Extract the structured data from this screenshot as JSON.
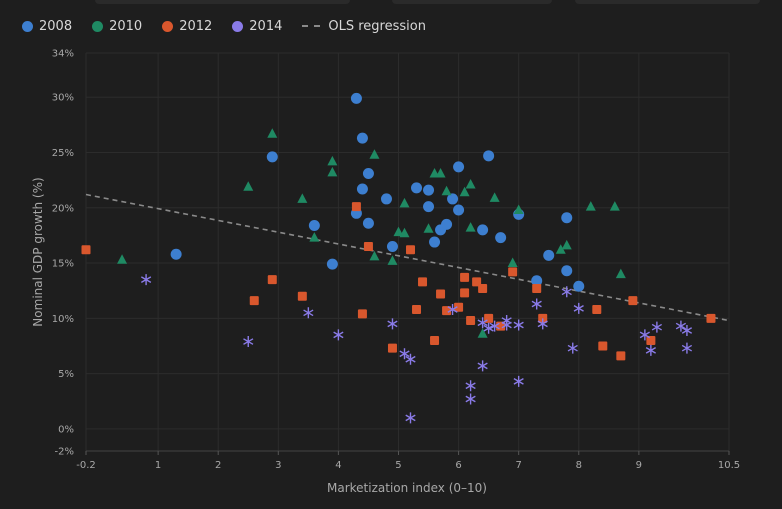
{
  "chart_data": {
    "type": "scatter",
    "xlabel": "Marketization index (0–10)",
    "ylabel": "Nominal GDP growth (%)",
    "xlim": [
      -0.2,
      10.5
    ],
    "ylim": [
      -2,
      34
    ],
    "x_ticks": [
      "-0.2",
      "1",
      "2",
      "3",
      "4",
      "5",
      "6",
      "7",
      "8",
      "9",
      "10.5"
    ],
    "x_tick_values": [
      -0.2,
      1,
      2,
      3,
      4,
      5,
      6,
      7,
      8,
      9,
      10.5
    ],
    "y_ticks": [
      "-2%",
      "0%",
      "5%",
      "10%",
      "15%",
      "20%",
      "25%",
      "30%",
      "34%"
    ],
    "y_tick_values": [
      -2,
      0,
      5,
      10,
      15,
      20,
      25,
      30,
      34
    ],
    "grid": true,
    "legend_position": "top-left",
    "series": [
      {
        "name": "2008",
        "marker": "circle",
        "color": "#3d7fd0",
        "points": [
          [
            1.3,
            15.8
          ],
          [
            2.9,
            24.6
          ],
          [
            3.6,
            18.4
          ],
          [
            3.9,
            14.9
          ],
          [
            4.3,
            29.9
          ],
          [
            4.4,
            26.3
          ],
          [
            4.4,
            21.7
          ],
          [
            4.3,
            19.5
          ],
          [
            4.5,
            23.1
          ],
          [
            4.5,
            18.6
          ],
          [
            4.8,
            20.8
          ],
          [
            4.9,
            16.5
          ],
          [
            5.3,
            21.8
          ],
          [
            5.5,
            21.6
          ],
          [
            5.5,
            20.1
          ],
          [
            5.6,
            16.9
          ],
          [
            5.7,
            18.0
          ],
          [
            5.8,
            18.5
          ],
          [
            5.9,
            20.8
          ],
          [
            6.0,
            23.7
          ],
          [
            6.0,
            19.8
          ],
          [
            6.4,
            18.0
          ],
          [
            6.5,
            24.7
          ],
          [
            6.7,
            17.3
          ],
          [
            7.0,
            19.4
          ],
          [
            7.3,
            13.4
          ],
          [
            7.5,
            15.7
          ],
          [
            7.8,
            19.1
          ],
          [
            7.8,
            14.3
          ],
          [
            8.0,
            12.9
          ]
        ]
      },
      {
        "name": "2010",
        "marker": "triangle",
        "color": "#1f8a63",
        "points": [
          [
            0.4,
            15.3
          ],
          [
            2.5,
            21.9
          ],
          [
            2.9,
            26.7
          ],
          [
            3.4,
            20.8
          ],
          [
            3.6,
            17.3
          ],
          [
            3.9,
            24.2
          ],
          [
            3.9,
            23.2
          ],
          [
            4.6,
            24.8
          ],
          [
            4.6,
            15.6
          ],
          [
            4.9,
            15.2
          ],
          [
            5.0,
            17.8
          ],
          [
            5.1,
            17.7
          ],
          [
            5.1,
            20.4
          ],
          [
            5.5,
            18.1
          ],
          [
            5.6,
            23.1
          ],
          [
            5.7,
            23.1
          ],
          [
            5.8,
            21.5
          ],
          [
            6.1,
            21.4
          ],
          [
            6.2,
            22.1
          ],
          [
            6.2,
            18.2
          ],
          [
            6.4,
            8.6
          ],
          [
            6.6,
            20.9
          ],
          [
            6.9,
            15.0
          ],
          [
            7.0,
            19.8
          ],
          [
            7.7,
            16.2
          ],
          [
            7.8,
            16.6
          ],
          [
            8.2,
            20.1
          ],
          [
            8.6,
            20.1
          ],
          [
            8.7,
            14.0
          ]
        ]
      },
      {
        "name": "2012",
        "marker": "square",
        "color": "#d9572d",
        "points": [
          [
            -0.2,
            16.2
          ],
          [
            2.6,
            11.6
          ],
          [
            2.9,
            13.5
          ],
          [
            3.4,
            12.0
          ],
          [
            4.3,
            20.1
          ],
          [
            4.4,
            10.4
          ],
          [
            4.5,
            16.5
          ],
          [
            4.9,
            7.3
          ],
          [
            5.2,
            16.2
          ],
          [
            5.3,
            10.8
          ],
          [
            5.4,
            13.3
          ],
          [
            5.6,
            8.0
          ],
          [
            5.7,
            12.2
          ],
          [
            5.8,
            10.7
          ],
          [
            6.0,
            11.0
          ],
          [
            6.1,
            13.7
          ],
          [
            6.1,
            12.3
          ],
          [
            6.2,
            9.8
          ],
          [
            6.3,
            13.3
          ],
          [
            6.4,
            12.7
          ],
          [
            6.5,
            10.0
          ],
          [
            6.7,
            9.3
          ],
          [
            6.9,
            14.2
          ],
          [
            7.3,
            12.7
          ],
          [
            7.4,
            10.0
          ],
          [
            8.3,
            10.8
          ],
          [
            8.4,
            7.5
          ],
          [
            8.7,
            6.6
          ],
          [
            8.9,
            11.6
          ],
          [
            9.2,
            8.0
          ],
          [
            10.2,
            10.0
          ]
        ]
      },
      {
        "name": "2014",
        "marker": "asterisk",
        "color": "#8a7be8",
        "points": [
          [
            0.8,
            13.5
          ],
          [
            2.5,
            7.9
          ],
          [
            3.5,
            10.5
          ],
          [
            4.0,
            8.5
          ],
          [
            4.9,
            9.5
          ],
          [
            5.1,
            6.8
          ],
          [
            5.2,
            6.3
          ],
          [
            5.2,
            1.0
          ],
          [
            5.9,
            10.8
          ],
          [
            6.2,
            3.9
          ],
          [
            6.2,
            2.7
          ],
          [
            6.4,
            5.7
          ],
          [
            6.4,
            9.6
          ],
          [
            6.5,
            9.1
          ],
          [
            6.6,
            9.3
          ],
          [
            6.8,
            9.8
          ],
          [
            6.8,
            9.4
          ],
          [
            7.0,
            9.4
          ],
          [
            7.0,
            4.3
          ],
          [
            7.3,
            11.3
          ],
          [
            7.4,
            9.5
          ],
          [
            7.8,
            12.4
          ],
          [
            7.9,
            7.3
          ],
          [
            8.0,
            10.9
          ],
          [
            9.1,
            8.5
          ],
          [
            9.2,
            7.1
          ],
          [
            9.3,
            9.2
          ],
          [
            9.7,
            9.3
          ],
          [
            9.8,
            8.9
          ],
          [
            9.8,
            7.3
          ]
        ]
      }
    ],
    "regression": {
      "name": "OLS regression",
      "color": "#8a8a8a",
      "x": [
        -0.2,
        10.5
      ],
      "y": [
        21.2,
        9.8
      ]
    }
  }
}
